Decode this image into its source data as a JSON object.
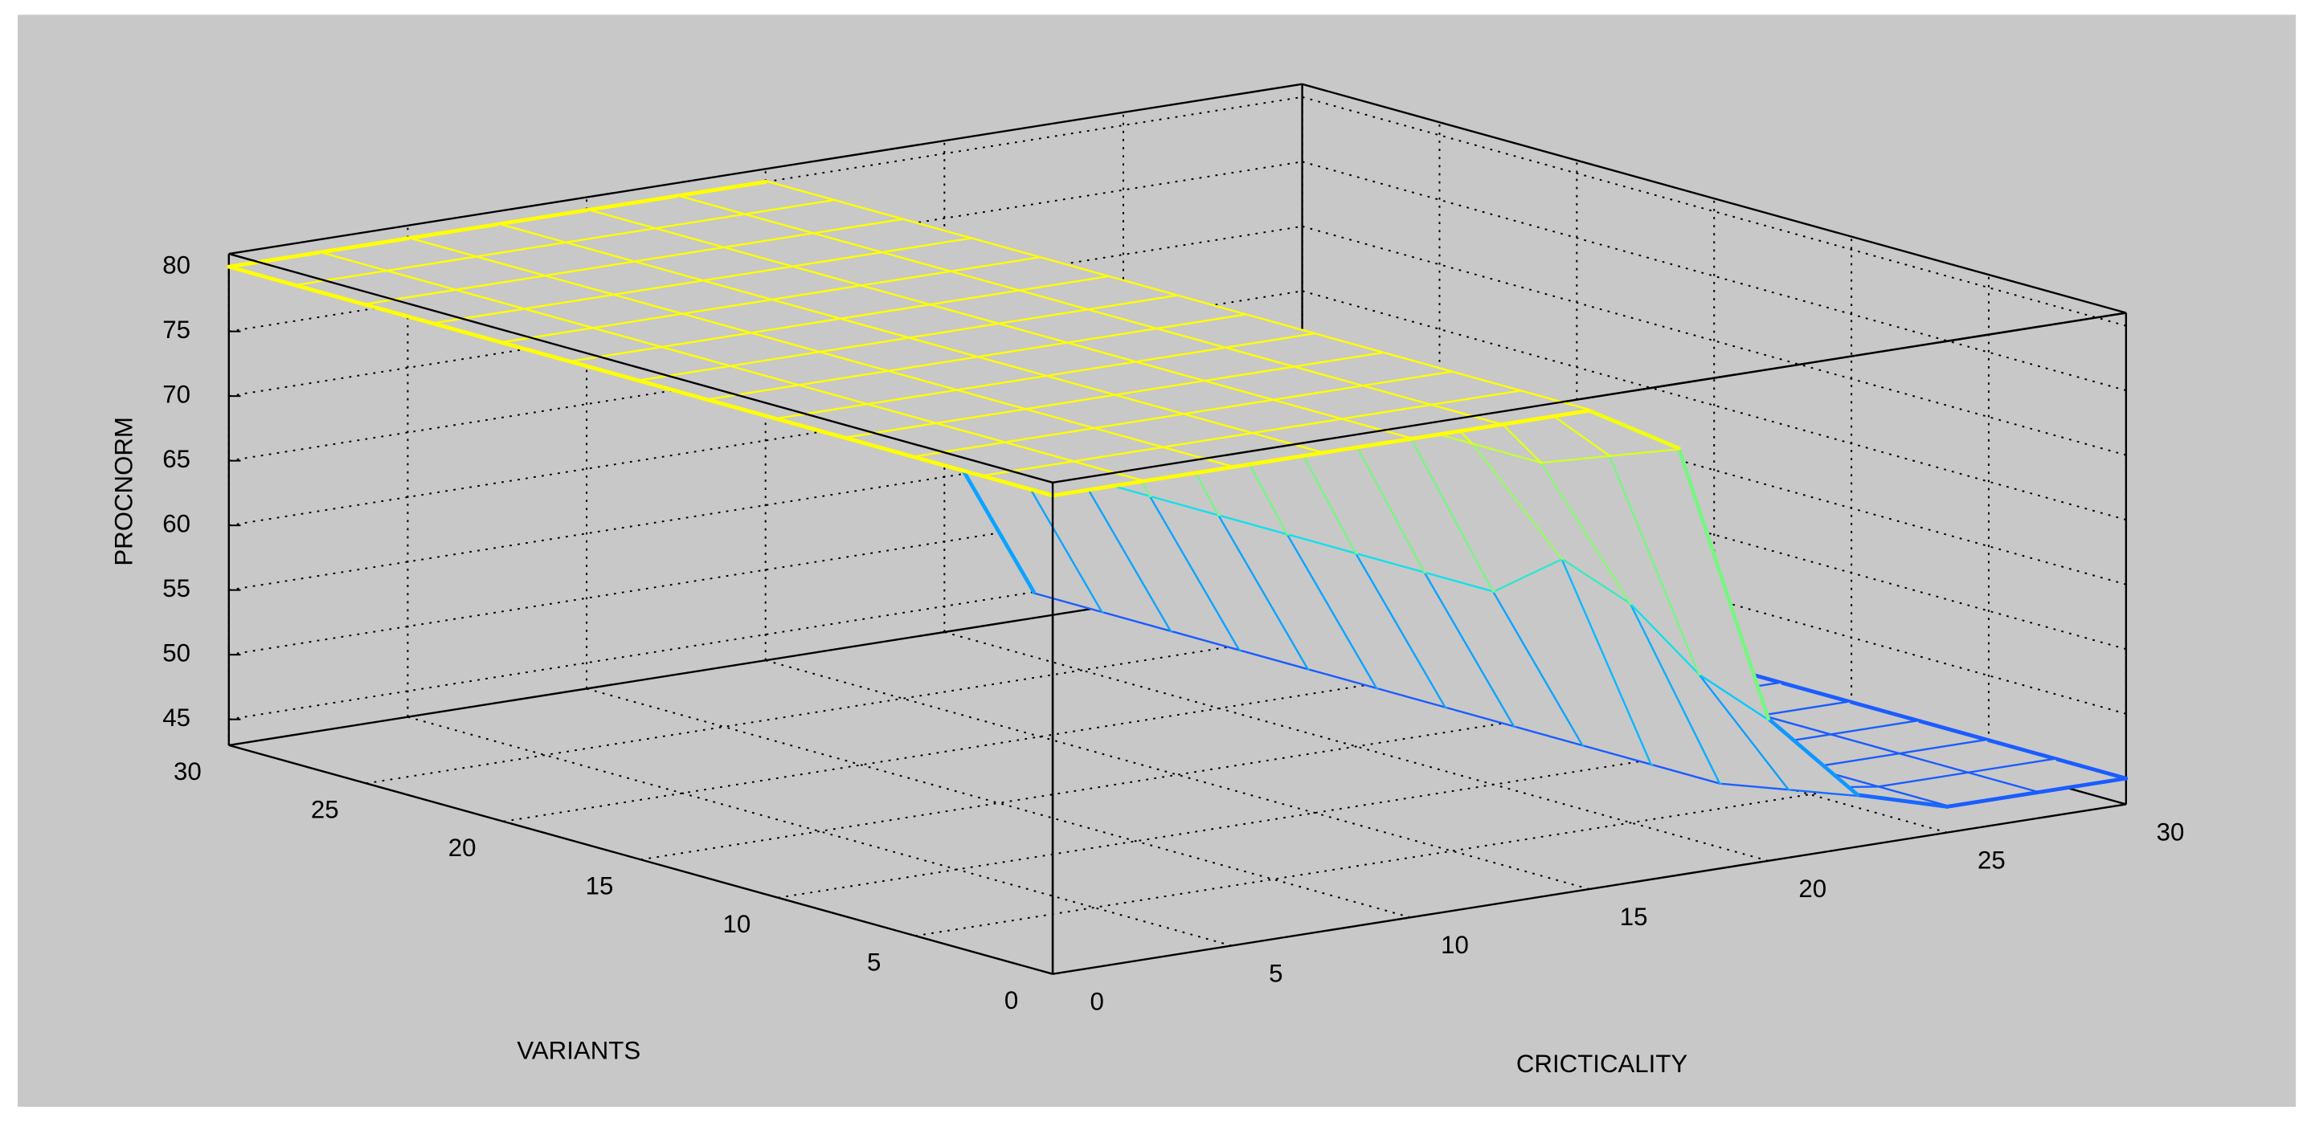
{
  "chart_data": {
    "type": "mesh",
    "xlabel": "CRICTICALITY",
    "ylabel": "VARIANTS",
    "zlabel": "PROCNORM",
    "x": [
      0,
      2.5,
      5,
      7.5,
      10,
      12.5,
      15,
      17.5,
      20,
      22.5,
      25,
      27.5,
      30
    ],
    "y": [
      0,
      2.5,
      5,
      7.5,
      10,
      12.5,
      15,
      17.5,
      20,
      22.5,
      25,
      27.5,
      30
    ],
    "z": [
      [
        80,
        80,
        80,
        80,
        80,
        80,
        80,
        76,
        54,
        47,
        45,
        45,
        45
      ],
      [
        80,
        80,
        80,
        80,
        80,
        80,
        80,
        74,
        56,
        46,
        45,
        45,
        45
      ],
      [
        80,
        80,
        80,
        80,
        80,
        80,
        80,
        72,
        60,
        45,
        45,
        45,
        45
      ],
      [
        80,
        80,
        80,
        80,
        80,
        80,
        80,
        72,
        62,
        45,
        45,
        45,
        45
      ],
      [
        80,
        80,
        80,
        80,
        80,
        80,
        80,
        72,
        58,
        45,
        45,
        45,
        45
      ],
      [
        80,
        80,
        80,
        80,
        80,
        80,
        80,
        72,
        58,
        45,
        45,
        45,
        45
      ],
      [
        80,
        80,
        80,
        80,
        80,
        80,
        80,
        72,
        58,
        45,
        45,
        45,
        45
      ],
      [
        80,
        80,
        80,
        80,
        80,
        80,
        80,
        72,
        58,
        45,
        45,
        45,
        45
      ],
      [
        80,
        80,
        80,
        80,
        80,
        80,
        80,
        72,
        58,
        45,
        45,
        45,
        45
      ],
      [
        80,
        80,
        80,
        80,
        80,
        80,
        80,
        72,
        58,
        45,
        45,
        45,
        45
      ],
      [
        80,
        80,
        80,
        80,
        80,
        80,
        80,
        72,
        58,
        45,
        45,
        45,
        45
      ],
      [
        80,
        80,
        80,
        80,
        80,
        80,
        80,
        72,
        58,
        45,
        45,
        45,
        45
      ],
      [
        80,
        80,
        80,
        80,
        80,
        80,
        80,
        72,
        58,
        45,
        45,
        45,
        45
      ]
    ],
    "xlim": [
      0,
      30
    ],
    "ylim": [
      0,
      30
    ],
    "zlim": [
      43,
      81
    ],
    "xticks": [
      0,
      5,
      10,
      15,
      20,
      25,
      30
    ],
    "yticks": [
      0,
      5,
      10,
      15,
      20,
      25,
      30
    ],
    "zticks": [
      45,
      50,
      55,
      60,
      65,
      70,
      75,
      80
    ],
    "grid": true,
    "colormap": [
      "#1a5cff",
      "#00dcff",
      "#a8ff50",
      "#ffff00"
    ]
  }
}
